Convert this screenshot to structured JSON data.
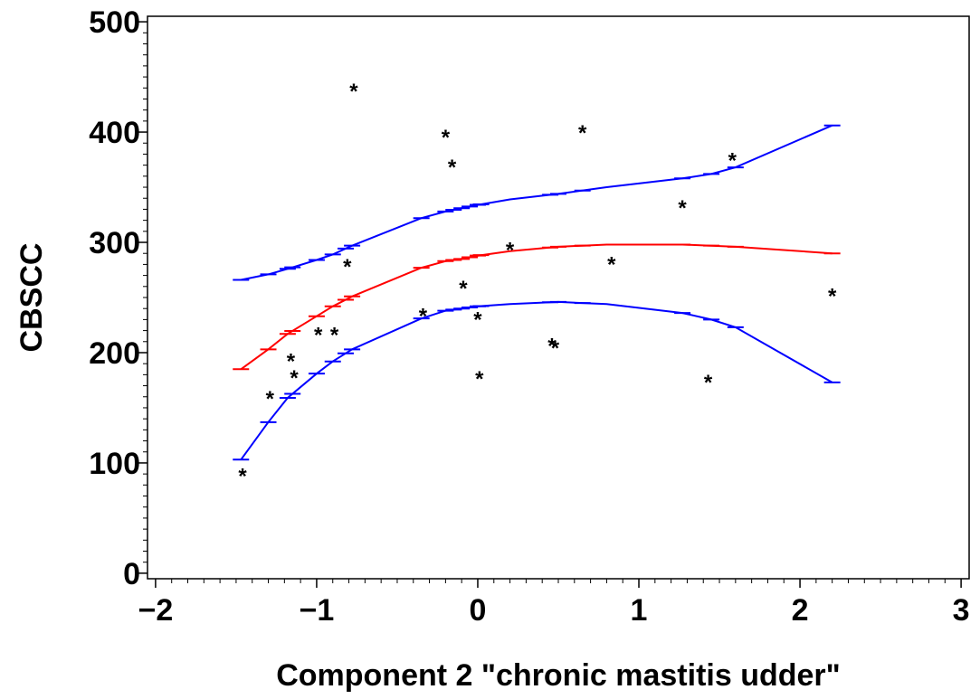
{
  "chart_data": {
    "type": "line",
    "xlabel": "Component 2 \"chronic mastitis udder\"",
    "ylabel": "CBSCC",
    "xlim": [
      -2.05,
      3.05
    ],
    "ylim": [
      -5,
      505
    ],
    "x_ticks": [
      -2,
      -1,
      0,
      1,
      2,
      3
    ],
    "y_ticks": [
      0,
      100,
      200,
      300,
      400,
      500
    ],
    "x_tick_labels": [
      "−2",
      "−1",
      "0",
      "1",
      "2",
      "3"
    ],
    "y_tick_labels": [
      "0",
      "100",
      "200",
      "300",
      "400",
      "500"
    ],
    "grid": false,
    "legend": "none",
    "series": [
      {
        "role": "upper",
        "color": "#0000ff",
        "points": [
          [
            -1.47,
            266
          ],
          [
            -1.3,
            271
          ],
          [
            -1.18,
            276
          ],
          [
            -1.0,
            284
          ],
          [
            -0.9,
            289
          ],
          [
            -0.78,
            297
          ],
          [
            -0.35,
            322
          ],
          [
            -0.2,
            328
          ],
          [
            -0.1,
            331
          ],
          [
            0.0,
            334
          ],
          [
            0.2,
            339
          ],
          [
            0.5,
            344
          ],
          [
            0.8,
            350
          ],
          [
            1.27,
            358
          ],
          [
            1.45,
            362
          ],
          [
            1.6,
            368
          ],
          [
            2.2,
            406
          ]
        ],
        "markers": [
          -1.47,
          -1.3,
          -1.18,
          -1.15,
          -1.0,
          -0.9,
          -0.82,
          -0.78,
          -0.35,
          -0.2,
          -0.15,
          -0.1,
          -0.05,
          0.0,
          0.02,
          0.45,
          0.5,
          0.65,
          1.27,
          1.45,
          1.6,
          2.2
        ]
      },
      {
        "role": "fit",
        "color": "#ff0000",
        "points": [
          [
            -1.47,
            185
          ],
          [
            -1.3,
            203
          ],
          [
            -1.18,
            217
          ],
          [
            -1.0,
            233
          ],
          [
            -0.9,
            242
          ],
          [
            -0.78,
            251
          ],
          [
            -0.35,
            277
          ],
          [
            -0.2,
            283
          ],
          [
            -0.1,
            285
          ],
          [
            0.0,
            288
          ],
          [
            0.2,
            292
          ],
          [
            0.5,
            296
          ],
          [
            0.8,
            298
          ],
          [
            1.27,
            298
          ],
          [
            1.45,
            297
          ],
          [
            1.6,
            296
          ],
          [
            2.2,
            290
          ]
        ],
        "markers": [
          -1.47,
          -1.3,
          -1.18,
          -1.15,
          -1.0,
          -0.9,
          -0.82,
          -0.78,
          -0.35,
          -0.2,
          -0.15,
          -0.1,
          -0.05,
          0.0,
          0.02,
          0.45,
          0.5,
          0.65,
          1.27,
          1.45,
          1.6,
          2.2
        ]
      },
      {
        "role": "lower",
        "color": "#0000ff",
        "points": [
          [
            -1.47,
            103
          ],
          [
            -1.3,
            137
          ],
          [
            -1.18,
            159
          ],
          [
            -1.0,
            181
          ],
          [
            -0.9,
            192
          ],
          [
            -0.78,
            203
          ],
          [
            -0.35,
            231
          ],
          [
            -0.2,
            238
          ],
          [
            -0.1,
            240
          ],
          [
            0.0,
            242
          ],
          [
            0.2,
            244
          ],
          [
            0.5,
            246
          ],
          [
            0.8,
            244
          ],
          [
            1.27,
            236
          ],
          [
            1.45,
            230
          ],
          [
            1.6,
            223
          ],
          [
            2.2,
            173
          ]
        ],
        "markers": [
          -1.47,
          -1.3,
          -1.18,
          -1.15,
          -1.0,
          -0.9,
          -0.82,
          -0.78,
          -0.35,
          -0.2,
          -0.15,
          -0.1,
          -0.05,
          0.0,
          0.02,
          0.45,
          0.5,
          0.65,
          1.27,
          1.45,
          1.6,
          2.2
        ]
      }
    ],
    "observations": [
      [
        -1.46,
        93
      ],
      [
        -1.29,
        163
      ],
      [
        -1.16,
        197
      ],
      [
        -1.14,
        182
      ],
      [
        -0.99,
        221
      ],
      [
        -0.89,
        221
      ],
      [
        -0.81,
        283
      ],
      [
        -0.77,
        442
      ],
      [
        -0.34,
        238
      ],
      [
        -0.2,
        400
      ],
      [
        -0.16,
        373
      ],
      [
        -0.09,
        263
      ],
      [
        0.0,
        235
      ],
      [
        0.01,
        181
      ],
      [
        0.2,
        298
      ],
      [
        0.46,
        211
      ],
      [
        0.48,
        209
      ],
      [
        0.65,
        404
      ],
      [
        0.83,
        285
      ],
      [
        1.27,
        336
      ],
      [
        1.43,
        178
      ],
      [
        1.58,
        379
      ],
      [
        2.2,
        256
      ]
    ],
    "observation_marker": "*"
  }
}
